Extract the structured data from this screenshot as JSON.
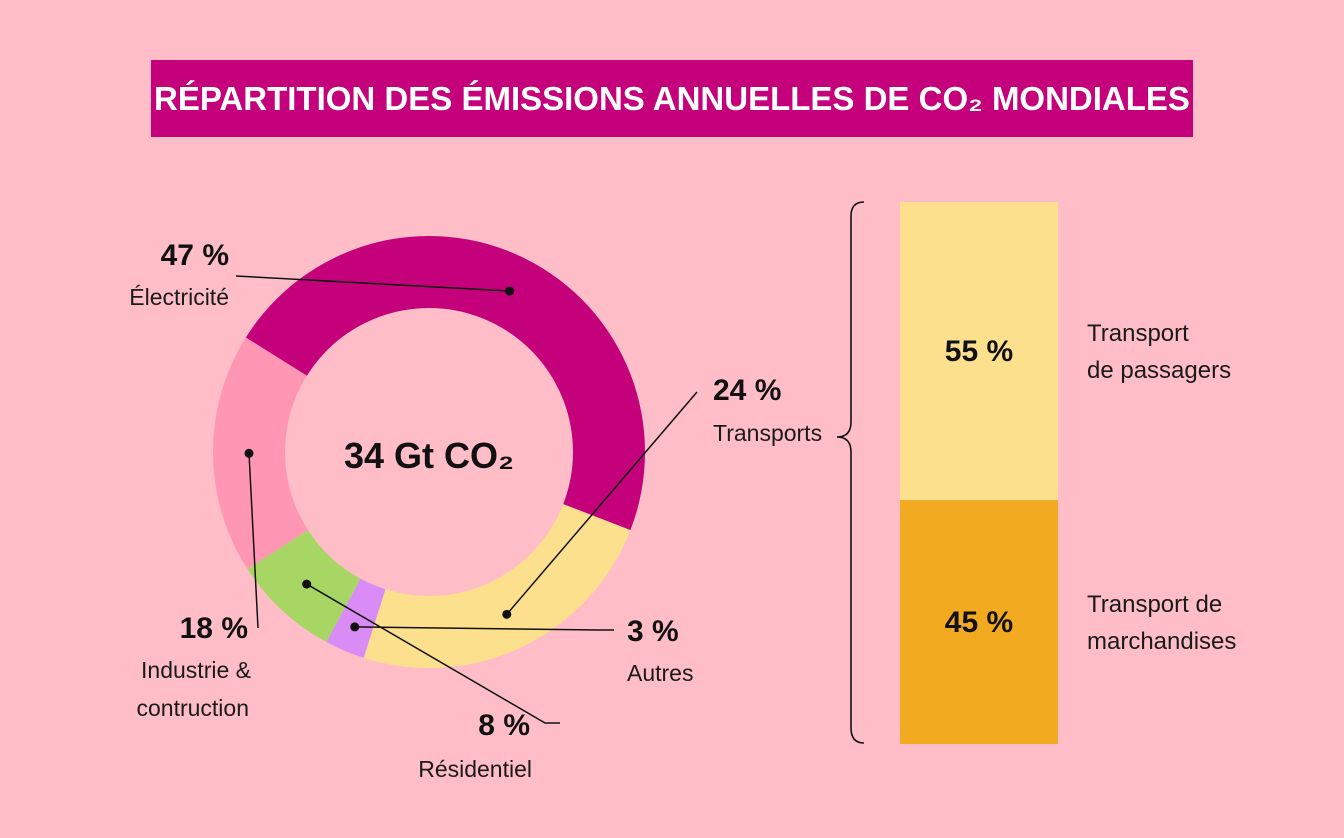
{
  "title": "RÉPARTITION DES ÉMISSIONS ANNUELLES DE CO₂ MONDIALES",
  "center_label": "34 Gt CO₂",
  "chart_data": [
    {
      "type": "pie",
      "title": "RÉPARTITION DES ÉMISSIONS ANNUELLES DE CO₂ MONDIALES",
      "total_label": "34 Gt CO₂",
      "slices": [
        {
          "name": "Électricité",
          "value": 47,
          "pct_label": "47 %",
          "label_lines": [
            "Électricité"
          ],
          "color": "#c4017b"
        },
        {
          "name": "Transports",
          "value": 24,
          "pct_label": "24 %",
          "label_lines": [
            "Transports"
          ],
          "color": "#fce08e"
        },
        {
          "name": "Autres",
          "value": 3,
          "pct_label": "3 %",
          "label_lines": [
            "Autres"
          ],
          "color": "#d98cf5"
        },
        {
          "name": "Résidentiel",
          "value": 8,
          "pct_label": "8 %",
          "label_lines": [
            "Résidentiel"
          ],
          "color": "#a8d664"
        },
        {
          "name": "Industrie & contruction",
          "value": 18,
          "pct_label": "18 %",
          "label_lines": [
            "Industrie &",
            "contruction"
          ],
          "color": "#ff96b4"
        }
      ]
    },
    {
      "type": "bar",
      "stacked": true,
      "parent": "Transports",
      "segments": [
        {
          "name": "Transport de passagers",
          "value": 55,
          "pct_label": "55 %",
          "label_lines": [
            "Transport",
            "de passagers"
          ],
          "color": "#fce08e"
        },
        {
          "name": "Transport de marchandises",
          "value": 45,
          "pct_label": "45 %",
          "label_lines": [
            "Transport de",
            "marchandises"
          ],
          "color": "#f2aa20"
        }
      ]
    }
  ]
}
